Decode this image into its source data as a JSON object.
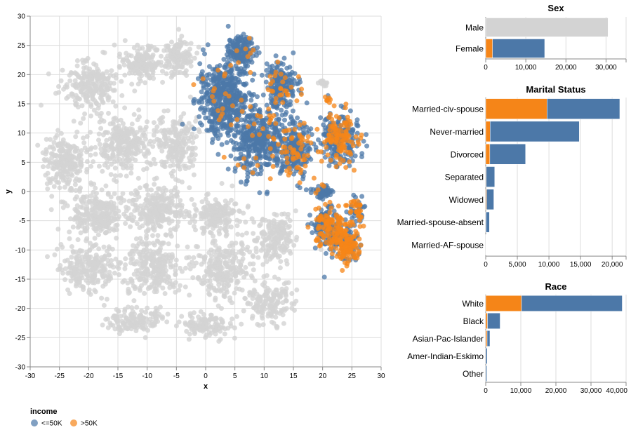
{
  "colors": {
    "low": "#4c78a8",
    "high": "#f58518",
    "unselected": "#d3d3d3",
    "grid": "#dddddd",
    "axis": "#888888"
  },
  "chart_data": [
    {
      "type": "scatter",
      "xlabel": "x",
      "ylabel": "y",
      "xlim": [
        -30,
        30
      ],
      "ylim": [
        -30,
        30
      ],
      "xticks": [
        "-30",
        "-25",
        "-20",
        "-15",
        "-10",
        "-5",
        "0",
        "5",
        "10",
        "15",
        "20",
        "25",
        "30"
      ],
      "yticks": [
        "30",
        "25",
        "20",
        "15",
        "10",
        "5",
        "0",
        "-5",
        "-10",
        "-15",
        "-20",
        "-25",
        "-30"
      ],
      "grid": true,
      "legend": {
        "title": "income",
        "placement": "bottom-left",
        "entries": [
          {
            "label": "<=50K",
            "color": "#4c78a8"
          },
          {
            "label": ">50K",
            "color": "#f58518"
          }
        ]
      },
      "selection": "Sex = Female",
      "clusters": [
        {
          "x": 3,
          "y": 16,
          "sx": 3.5,
          "sy": 5,
          "n": 520,
          "high_frac": 0.04,
          "selected": true
        },
        {
          "x": 6,
          "y": 24,
          "sx": 1.8,
          "sy": 2,
          "n": 160,
          "high_frac": 0.05,
          "selected": true
        },
        {
          "x": 9,
          "y": 9,
          "sx": 4,
          "sy": 5,
          "n": 420,
          "high_frac": 0.05,
          "selected": true
        },
        {
          "x": 13,
          "y": 18,
          "sx": 2.5,
          "sy": 3.5,
          "n": 200,
          "high_frac": 0.1,
          "selected": true
        },
        {
          "x": 15,
          "y": 7,
          "sx": 2.5,
          "sy": 4,
          "n": 240,
          "high_frac": 0.22,
          "selected": true
        },
        {
          "x": 23,
          "y": 9,
          "sx": 2.7,
          "sy": 3.6,
          "n": 300,
          "high_frac": 0.3,
          "selected": true
        },
        {
          "x": 20,
          "y": 0,
          "sx": 1.5,
          "sy": 1,
          "n": 60,
          "high_frac": 0.1,
          "selected": true
        },
        {
          "x": 21,
          "y": -6,
          "sx": 2,
          "sy": 3,
          "n": 230,
          "high_frac": 0.4,
          "selected": true
        },
        {
          "x": 24,
          "y": -9,
          "sx": 2,
          "sy": 2.5,
          "n": 200,
          "high_frac": 0.65,
          "selected": true
        },
        {
          "x": 26,
          "y": -3,
          "sx": 1.2,
          "sy": 2,
          "n": 60,
          "high_frac": 0.45,
          "selected": true
        },
        {
          "x": 21,
          "y": 16,
          "sx": 0.4,
          "sy": 0.5,
          "n": 8,
          "high_frac": 0.8,
          "selected": true
        },
        {
          "x": -11,
          "y": 22,
          "sx": 3,
          "sy": 2.5,
          "n": 160,
          "high_frac": 0,
          "selected": false
        },
        {
          "x": -20,
          "y": 18,
          "sx": 4,
          "sy": 3.5,
          "n": 220,
          "high_frac": 0,
          "selected": false
        },
        {
          "x": -5,
          "y": 23,
          "sx": 2.5,
          "sy": 2.5,
          "n": 130,
          "high_frac": 0,
          "selected": false
        },
        {
          "x": -24,
          "y": 5,
          "sx": 3.5,
          "sy": 4,
          "n": 230,
          "high_frac": 0,
          "selected": false
        },
        {
          "x": -14,
          "y": 8,
          "sx": 4,
          "sy": 4,
          "n": 260,
          "high_frac": 0,
          "selected": false
        },
        {
          "x": -5,
          "y": 8,
          "sx": 3,
          "sy": 4,
          "n": 200,
          "high_frac": 0,
          "selected": false
        },
        {
          "x": -18,
          "y": -4,
          "sx": 4,
          "sy": 3.5,
          "n": 260,
          "high_frac": 0,
          "selected": false
        },
        {
          "x": -8,
          "y": -3,
          "sx": 3.5,
          "sy": 3.5,
          "n": 230,
          "high_frac": 0,
          "selected": false
        },
        {
          "x": 2,
          "y": -4,
          "sx": 3.5,
          "sy": 2.5,
          "n": 180,
          "high_frac": 0,
          "selected": false
        },
        {
          "x": -20,
          "y": -13,
          "sx": 4,
          "sy": 3.5,
          "n": 220,
          "high_frac": 0,
          "selected": false
        },
        {
          "x": -9,
          "y": -13,
          "sx": 4,
          "sy": 4,
          "n": 260,
          "high_frac": 0,
          "selected": false
        },
        {
          "x": 3,
          "y": -13,
          "sx": 4,
          "sy": 4,
          "n": 260,
          "high_frac": 0,
          "selected": false
        },
        {
          "x": 12,
          "y": -8,
          "sx": 3,
          "sy": 3.5,
          "n": 180,
          "high_frac": 0,
          "selected": false
        },
        {
          "x": 11,
          "y": -19,
          "sx": 3.5,
          "sy": 3,
          "n": 150,
          "high_frac": 0,
          "selected": false
        },
        {
          "x": -12,
          "y": -22,
          "sx": 4,
          "sy": 2,
          "n": 130,
          "high_frac": 0,
          "selected": false
        },
        {
          "x": 0,
          "y": -23,
          "sx": 3.5,
          "sy": 2,
          "n": 110,
          "high_frac": 0,
          "selected": false
        },
        {
          "x": 20,
          "y": 18.5,
          "sx": 0.8,
          "sy": 0.4,
          "n": 12,
          "high_frac": 0,
          "selected": false
        }
      ]
    },
    {
      "type": "bar",
      "title": "Sex",
      "stacked": true,
      "orientation": "horizontal",
      "categories": [
        "Male",
        "Female"
      ],
      "series": [
        {
          "name": ">50K",
          "values": [
            null,
            1700
          ]
        },
        {
          "name": "<=50K",
          "values": [
            null,
            13000
          ]
        }
      ],
      "unselected_totals": [
        30500,
        null
      ],
      "xlim": [
        0,
        35000
      ],
      "xticks": [
        "0",
        "10,000",
        "20,000",
        "30,000"
      ],
      "tick_values": [
        0,
        10000,
        20000,
        30000
      ]
    },
    {
      "type": "bar",
      "title": "Marital Status",
      "stacked": true,
      "orientation": "horizontal",
      "categories": [
        "Married-civ-spouse",
        "Never-married",
        "Divorced",
        "Separated",
        "Widowed",
        "Married-spouse-absent",
        "Married-AF-spouse"
      ],
      "series": [
        {
          "name": ">50K",
          "values": [
            9700,
            700,
            650,
            70,
            130,
            40,
            15
          ]
        },
        {
          "name": "<=50K",
          "values": [
            11500,
            14100,
            5650,
            1350,
            1150,
            550,
            20
          ]
        }
      ],
      "xlim": [
        0,
        22200
      ],
      "xticks": [
        "0",
        "5,000",
        "10,000",
        "15,000",
        "20,000"
      ],
      "tick_values": [
        0,
        5000,
        10000,
        15000,
        20000
      ]
    },
    {
      "type": "bar",
      "title": "Race",
      "stacked": true,
      "orientation": "horizontal",
      "categories": [
        "White",
        "Black",
        "Asian-Pac-Islander",
        "Amer-Indian-Eskimo",
        "Other"
      ],
      "series": [
        {
          "name": ">50K",
          "values": [
            10200,
            500,
            400,
            50,
            40
          ]
        },
        {
          "name": "<=50K",
          "values": [
            28700,
            3600,
            800,
            400,
            310
          ]
        }
      ],
      "xlim": [
        0,
        40000
      ],
      "xticks": [
        "0",
        "10,000",
        "20,000",
        "30,000",
        "40,000"
      ],
      "tick_values": [
        0,
        10000,
        20000,
        30000,
        40000
      ]
    }
  ]
}
